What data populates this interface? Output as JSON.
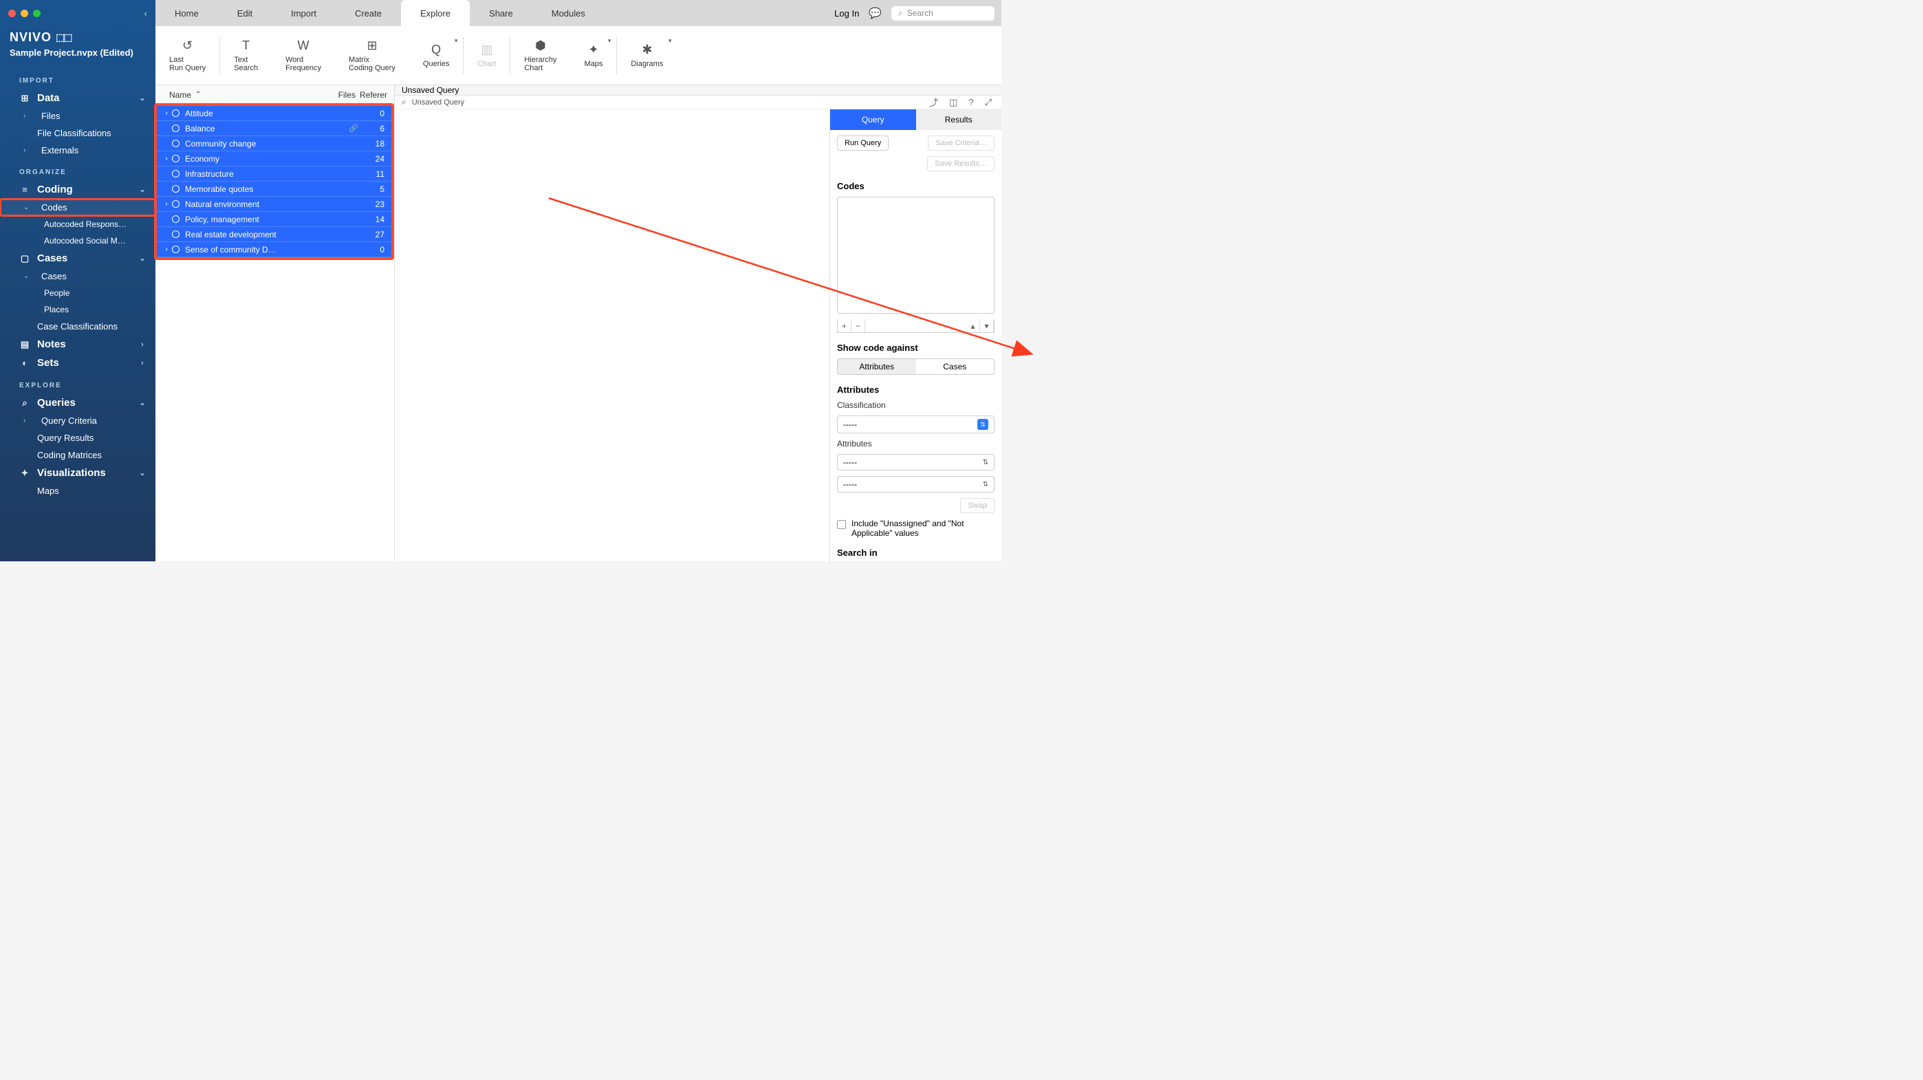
{
  "window": {
    "project": "Sample Project.nvpx (Edited)",
    "logo": "NVIVO"
  },
  "menubar": {
    "tabs": [
      "Home",
      "Edit",
      "Import",
      "Create",
      "Explore",
      "Share",
      "Modules"
    ],
    "active_index": 4,
    "login": "Log In",
    "search_placeholder": "Search"
  },
  "ribbon": {
    "items": [
      {
        "label": "Last Run Query",
        "icon": "↺"
      },
      {
        "label": "Text Search",
        "icon": "T"
      },
      {
        "label": "Word Frequency",
        "icon": "W"
      },
      {
        "label": "Matrix Coding Query",
        "icon": "⊞"
      },
      {
        "label": "Queries",
        "icon": "Q",
        "dropdown": true
      },
      {
        "label": "Chart",
        "icon": "▥",
        "disabled": true
      },
      {
        "label": "Hierarchy Chart",
        "icon": "⬢"
      },
      {
        "label": "Maps",
        "icon": "✦",
        "dropdown": true
      },
      {
        "label": "Diagrams",
        "icon": "✱",
        "dropdown": true
      }
    ],
    "separators_after": [
      0,
      4,
      5,
      7
    ]
  },
  "sidebar": {
    "sections": {
      "import": {
        "title": "IMPORT",
        "items": [
          {
            "label": "Data",
            "top": true,
            "chev": "⌄",
            "icon": "⊞"
          },
          {
            "label": "Files",
            "exp": "›"
          },
          {
            "label": "File Classifications"
          },
          {
            "label": "Externals",
            "exp": "›"
          }
        ]
      },
      "organize": {
        "title": "ORGANIZE",
        "items": [
          {
            "label": "Coding",
            "top": true,
            "chev": "⌄",
            "icon": "≡"
          },
          {
            "label": "Codes",
            "exp": "⌄",
            "highlight": true
          },
          {
            "label": "Autocoded Respons…",
            "subsub": true
          },
          {
            "label": "Autocoded Social M…",
            "subsub": true
          },
          {
            "label": "Cases",
            "top": true,
            "chev": "⌄",
            "icon": "▢"
          },
          {
            "label": "Cases",
            "exp": "⌄"
          },
          {
            "label": "People",
            "subsub": true
          },
          {
            "label": "Places",
            "subsub": true
          },
          {
            "label": "Case Classifications"
          },
          {
            "label": "Notes",
            "top": true,
            "chev": "›",
            "icon": "▤"
          },
          {
            "label": "Sets",
            "top": true,
            "chev": "›",
            "icon": "◐"
          }
        ]
      },
      "explore": {
        "title": "EXPLORE",
        "items": [
          {
            "label": "Queries",
            "top": true,
            "chev": "⌄",
            "icon": "⌕"
          },
          {
            "label": "Query Criteria",
            "exp": "›"
          },
          {
            "label": "Query Results"
          },
          {
            "label": "Coding Matrices"
          },
          {
            "label": "Visualizations",
            "top": true,
            "chev": "⌄",
            "icon": "✦"
          },
          {
            "label": "Maps"
          }
        ]
      }
    }
  },
  "list": {
    "columns": {
      "name": "Name",
      "files": "Files",
      "references": "References"
    },
    "rows": [
      {
        "name": "Attitude",
        "files": 0,
        "exp": true
      },
      {
        "name": "Balance",
        "files": 6,
        "link": true
      },
      {
        "name": "Community change",
        "files": 18
      },
      {
        "name": "Economy",
        "files": 24,
        "exp": true
      },
      {
        "name": "Infrastructure",
        "files": 11
      },
      {
        "name": "Memorable quotes",
        "files": 5
      },
      {
        "name": "Natural environment",
        "files": 23,
        "exp": true
      },
      {
        "name": "Policy, management",
        "files": 14
      },
      {
        "name": "Real estate development",
        "files": 27
      },
      {
        "name": "Sense of community D…",
        "files": 0,
        "exp": true
      }
    ]
  },
  "detail": {
    "title": "Unsaved Query",
    "subtitle": "Unsaved Query"
  },
  "right": {
    "tabs": {
      "query": "Query",
      "results": "Results",
      "active": 0
    },
    "run_query": "Run Query",
    "save_criteria": "Save Criteria…",
    "save_results": "Save Results…",
    "codes_heading": "Codes",
    "show_code_against": "Show code against",
    "seg": {
      "attributes": "Attributes",
      "cases": "Cases",
      "active": 0
    },
    "attributes_heading": "Attributes",
    "classification_label": "Classification",
    "classification_value": "-----",
    "attributes_label": "Attributes",
    "attr1": "-----",
    "attr2": "-----",
    "swap": "Swap",
    "include_unassigned": "Include \"Unassigned\" and \"Not Applicable\" values",
    "search_in": "Search in"
  },
  "annotation": {
    "arrow_color": "#ff3b1f",
    "highlight_color": "#ff4a2e"
  }
}
